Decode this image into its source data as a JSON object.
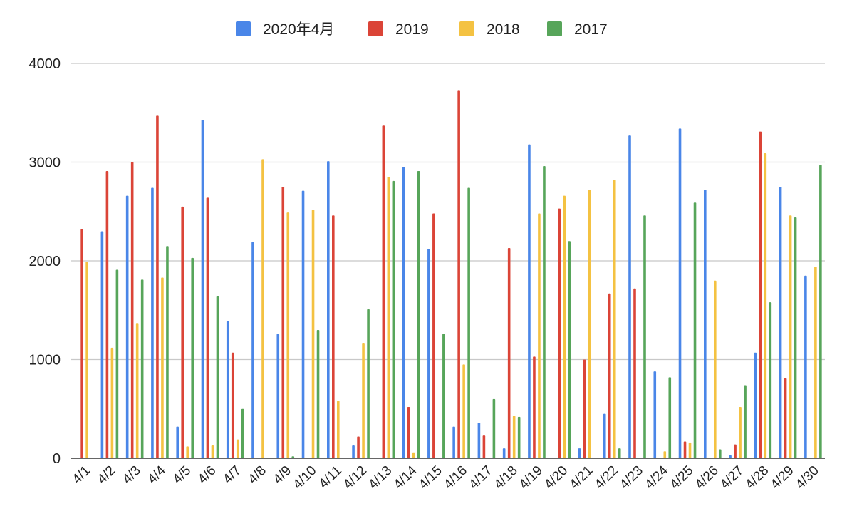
{
  "chart_data": {
    "type": "bar",
    "title": "",
    "xlabel": "",
    "ylabel": "",
    "ylim": [
      0,
      4000
    ],
    "yticks": [
      0,
      1000,
      2000,
      3000,
      4000
    ],
    "grid": true,
    "legend_position": "top-center",
    "categories": [
      "4/1",
      "4/2",
      "4/3",
      "4/4",
      "4/5",
      "4/6",
      "4/7",
      "4/8",
      "4/9",
      "4/10",
      "4/11",
      "4/12",
      "4/13",
      "4/14",
      "4/15",
      "4/16",
      "4/17",
      "4/18",
      "4/19",
      "4/20",
      "4/21",
      "4/22",
      "4/23",
      "4/24",
      "4/25",
      "4/26",
      "4/27",
      "4/28",
      "4/29",
      "4/30"
    ],
    "series": [
      {
        "name": "2020年4月",
        "color": "#4a86e8",
        "values": [
          0,
          2300,
          2660,
          2740,
          320,
          3430,
          1390,
          2190,
          1260,
          2710,
          3010,
          130,
          0,
          2950,
          2120,
          320,
          360,
          100,
          3180,
          0,
          100,
          450,
          3270,
          880,
          3340,
          2720,
          30,
          1070,
          2750,
          1850
        ]
      },
      {
        "name": "2019",
        "color": "#db4437",
        "values": [
          2320,
          2910,
          3000,
          3470,
          2550,
          2640,
          1070,
          0,
          2750,
          0,
          2460,
          220,
          3370,
          520,
          2480,
          3730,
          230,
          2130,
          1030,
          2530,
          1000,
          1670,
          1720,
          0,
          170,
          0,
          140,
          3310,
          810,
          0
        ]
      },
      {
        "name": "2018",
        "color": "#f4c242",
        "values": [
          1990,
          1120,
          1370,
          1830,
          120,
          130,
          190,
          3030,
          2490,
          2520,
          580,
          1170,
          2850,
          60,
          0,
          950,
          0,
          430,
          2480,
          2660,
          2720,
          2820,
          0,
          70,
          160,
          1800,
          520,
          3090,
          2460,
          1940
        ]
      },
      {
        "name": "2017",
        "color": "#57a55a",
        "values": [
          0,
          1910,
          1810,
          2150,
          2030,
          1640,
          500,
          0,
          20,
          1300,
          0,
          1510,
          2810,
          2910,
          1260,
          2740,
          600,
          420,
          2960,
          2200,
          0,
          100,
          2460,
          820,
          2590,
          90,
          740,
          1580,
          2440,
          2970
        ]
      }
    ]
  }
}
